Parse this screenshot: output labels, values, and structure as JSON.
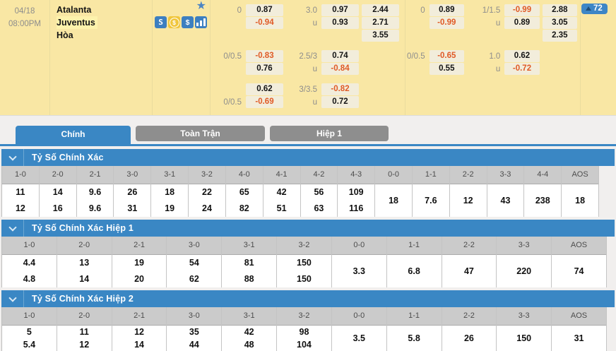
{
  "colors": {
    "accent_blue": "#3a87c4",
    "panel_yellow": "#f9e7a4",
    "negative_orange": "#e05a26",
    "inactive_tab_gray": "#8e8e8e",
    "icon_blue": "#3d7fc0",
    "coin_gold": "#f0c63c"
  },
  "match": {
    "date": "04/18",
    "time": "08:00PM",
    "home_team": "Atalanta",
    "away_team": "Juventus",
    "draw_label": "Hòa",
    "odds_count_badge": "72",
    "action_icons": [
      "livescore-icon",
      "coin-icon",
      "dollar-icon",
      "stats-icon"
    ],
    "odds_groups": [
      {
        "rows": [
          {
            "hl": "0",
            "hv": "0.87",
            "ol": "3.0",
            "ov": "0.97",
            "xv": "2.44"
          },
          {
            "hv": "-0.94",
            "ol": "u",
            "ov": "0.93",
            "xv": "2.71"
          },
          {
            "xv": "3.55"
          },
          {
            "gap": true,
            "hl": "0/0.5",
            "hv": "-0.83",
            "ol": "2.5/3",
            "ov": "0.74"
          },
          {
            "hv": "0.76",
            "ol": "u",
            "ov": "-0.84"
          },
          {
            "gap": true,
            "hv": "0.62",
            "ol": "3/3.5",
            "ov": "-0.82"
          },
          {
            "hl": "0/0.5",
            "hv": "-0.69",
            "ol": "u",
            "ov": "0.72"
          }
        ]
      },
      {
        "rows": [
          {
            "hl": "0",
            "hv": "0.89",
            "ol": "1/1.5",
            "ov": "-0.99",
            "xv": "2.88"
          },
          {
            "hv": "-0.99",
            "ol": "u",
            "ov": "0.89",
            "xv": "3.05"
          },
          {
            "xv": "2.35"
          },
          {
            "gap": true,
            "hl": "0/0.5",
            "hv": "-0.65",
            "ol": "1.0",
            "ov": "0.62"
          },
          {
            "hv": "0.55",
            "ol": "u",
            "ov": "-0.72"
          }
        ]
      }
    ]
  },
  "tabs": [
    {
      "id": "chinh",
      "label": "Chính",
      "active": true
    },
    {
      "id": "toan-tran",
      "label": "Toàn Trận",
      "active": false
    },
    {
      "id": "hiep-1",
      "label": "Hiệp 1",
      "active": false
    }
  ],
  "sections": [
    {
      "title": "Tỷ Số Chính Xác",
      "columns": [
        {
          "score": "1-0",
          "v1": "11",
          "v2": "12"
        },
        {
          "score": "2-0",
          "v1": "14",
          "v2": "16"
        },
        {
          "score": "2-1",
          "v1": "9.6",
          "v2": "9.6"
        },
        {
          "score": "3-0",
          "v1": "26",
          "v2": "31"
        },
        {
          "score": "3-1",
          "v1": "18",
          "v2": "19"
        },
        {
          "score": "3-2",
          "v1": "22",
          "v2": "24"
        },
        {
          "score": "4-0",
          "v1": "65",
          "v2": "82"
        },
        {
          "score": "4-1",
          "v1": "42",
          "v2": "51"
        },
        {
          "score": "4-2",
          "v1": "56",
          "v2": "63"
        },
        {
          "score": "4-3",
          "v1": "109",
          "v2": "116"
        },
        {
          "score": "0-0",
          "v": "18"
        },
        {
          "score": "1-1",
          "v": "7.6"
        },
        {
          "score": "2-2",
          "v": "12"
        },
        {
          "score": "3-3",
          "v": "43"
        },
        {
          "score": "4-4",
          "v": "238"
        },
        {
          "score": "AOS",
          "v": "18"
        }
      ]
    },
    {
      "title": "Tỷ Số Chính Xác Hiệp 1",
      "columns": [
        {
          "score": "1-0",
          "v1": "4.4",
          "v2": "4.8"
        },
        {
          "score": "2-0",
          "v1": "13",
          "v2": "14"
        },
        {
          "score": "2-1",
          "v1": "19",
          "v2": "20"
        },
        {
          "score": "3-0",
          "v1": "54",
          "v2": "62"
        },
        {
          "score": "3-1",
          "v1": "81",
          "v2": "88"
        },
        {
          "score": "3-2",
          "v1": "150",
          "v2": "150"
        },
        {
          "score": "0-0",
          "v": "3.3"
        },
        {
          "score": "1-1",
          "v": "6.8"
        },
        {
          "score": "2-2",
          "v": "47"
        },
        {
          "score": "3-3",
          "v": "220"
        },
        {
          "score": "AOS",
          "v": "74"
        }
      ]
    },
    {
      "title": "Tỷ Số Chính Xác Hiệp 2",
      "columns": [
        {
          "score": "1-0",
          "v1": "5",
          "v2": "5.4"
        },
        {
          "score": "2-0",
          "v1": "11",
          "v2": "12"
        },
        {
          "score": "2-1",
          "v1": "12",
          "v2": "14"
        },
        {
          "score": "3-0",
          "v1": "35",
          "v2": "44"
        },
        {
          "score": "3-1",
          "v1": "42",
          "v2": "48"
        },
        {
          "score": "3-2",
          "v1": "98",
          "v2": "104"
        },
        {
          "score": "0-0",
          "v": "3.5"
        },
        {
          "score": "1-1",
          "v": "5.8"
        },
        {
          "score": "2-2",
          "v": "26"
        },
        {
          "score": "3-3",
          "v": "150"
        },
        {
          "score": "AOS",
          "v": "31"
        }
      ]
    }
  ]
}
